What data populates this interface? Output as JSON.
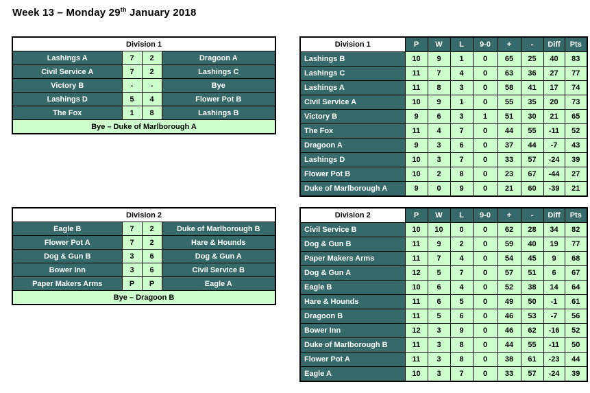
{
  "title": {
    "main": "Week 13 – Monday 29",
    "ordinal": "th",
    "rest": " January 2018"
  },
  "colors": {
    "teal": "#35696A",
    "light-green": "#CCFFCC",
    "header-bg": "#FFFFFF",
    "text-on-teal": "#FFFFFF",
    "text-dark": "#000000",
    "grid-border": "#000000"
  },
  "results": [
    {
      "name": "Division 1",
      "matches": [
        {
          "home": "Lashings A",
          "home_score": "7",
          "away_score": "2",
          "away": "Dragoon A"
        },
        {
          "home": "Civil Service A",
          "home_score": "7",
          "away_score": "2",
          "away": "Lashings C"
        },
        {
          "home": "Victory B",
          "home_score": "-",
          "away_score": "-",
          "away": "Bye"
        },
        {
          "home": "Lashings D",
          "home_score": "5",
          "away_score": "4",
          "away": "Flower Pot B"
        },
        {
          "home": "The Fox",
          "home_score": "1",
          "away_score": "8",
          "away": "Lashings B"
        }
      ],
      "bye": "Bye – Duke of Marlborough A"
    },
    {
      "name": "Division 2",
      "matches": [
        {
          "home": "Eagle B",
          "home_score": "7",
          "away_score": "2",
          "away": "Duke of Marlborough B"
        },
        {
          "home": "Flower Pot A",
          "home_score": "7",
          "away_score": "2",
          "away": "Hare & Hounds"
        },
        {
          "home": "Dog & Gun B",
          "home_score": "3",
          "away_score": "6",
          "away": "Dog & Gun A"
        },
        {
          "home": "Bower Inn",
          "home_score": "3",
          "away_score": "6",
          "away": "Civil Service B"
        },
        {
          "home": "Paper Makers Arms",
          "home_score": "P",
          "away_score": "P",
          "away": "Eagle A"
        }
      ],
      "bye": "Bye – Dragoon B"
    }
  ],
  "standings": [
    {
      "name": "Division 1",
      "columns": [
        "P",
        "W",
        "L",
        "9-0",
        "+",
        "-",
        "Diff",
        "Pts"
      ],
      "rows": [
        {
          "team": "Lashings B",
          "values": [
            10,
            9,
            1,
            0,
            65,
            25,
            40,
            83
          ]
        },
        {
          "team": "Lashings C",
          "values": [
            11,
            7,
            4,
            0,
            63,
            36,
            27,
            77
          ]
        },
        {
          "team": "Lashings A",
          "values": [
            11,
            8,
            3,
            0,
            58,
            41,
            17,
            74
          ]
        },
        {
          "team": "Civil Service A",
          "values": [
            10,
            9,
            1,
            0,
            55,
            35,
            20,
            73
          ]
        },
        {
          "team": "Victory B",
          "values": [
            9,
            6,
            3,
            1,
            51,
            30,
            21,
            65
          ]
        },
        {
          "team": "The Fox",
          "values": [
            11,
            4,
            7,
            0,
            44,
            55,
            -11,
            52
          ]
        },
        {
          "team": "Dragoon A",
          "values": [
            9,
            3,
            6,
            0,
            37,
            44,
            -7,
            43
          ]
        },
        {
          "team": "Lashings D",
          "values": [
            10,
            3,
            7,
            0,
            33,
            57,
            -24,
            39
          ]
        },
        {
          "team": "Flower Pot B",
          "values": [
            10,
            2,
            8,
            0,
            23,
            67,
            -44,
            27
          ]
        },
        {
          "team": "Duke of Marlborough A",
          "values": [
            9,
            0,
            9,
            0,
            21,
            60,
            -39,
            21
          ]
        }
      ]
    },
    {
      "name": "Division 2",
      "columns": [
        "P",
        "W",
        "L",
        "9-0",
        "+",
        "-",
        "Diff",
        "Pts"
      ],
      "rows": [
        {
          "team": "Civil Service B",
          "values": [
            10,
            10,
            0,
            0,
            62,
            28,
            34,
            82
          ]
        },
        {
          "team": "Dog & Gun B",
          "values": [
            11,
            9,
            2,
            0,
            59,
            40,
            19,
            77
          ]
        },
        {
          "team": "Paper Makers Arms",
          "values": [
            11,
            7,
            4,
            0,
            54,
            45,
            9,
            68
          ]
        },
        {
          "team": "Dog & Gun A",
          "values": [
            12,
            5,
            7,
            0,
            57,
            51,
            6,
            67
          ]
        },
        {
          "team": "Eagle B",
          "values": [
            10,
            6,
            4,
            0,
            52,
            38,
            14,
            64
          ]
        },
        {
          "team": "Hare & Hounds",
          "values": [
            11,
            6,
            5,
            0,
            49,
            50,
            -1,
            61
          ]
        },
        {
          "team": "Dragoon B",
          "values": [
            11,
            5,
            6,
            0,
            46,
            53,
            -7,
            56
          ]
        },
        {
          "team": "Bower Inn",
          "values": [
            12,
            3,
            9,
            0,
            46,
            62,
            -16,
            52
          ]
        },
        {
          "team": "Duke of Marlborough B",
          "values": [
            11,
            3,
            8,
            0,
            44,
            55,
            -11,
            50
          ]
        },
        {
          "team": "Flower Pot A",
          "values": [
            11,
            3,
            8,
            0,
            38,
            61,
            -23,
            44
          ]
        },
        {
          "team": "Eagle A",
          "values": [
            10,
            3,
            7,
            0,
            33,
            57,
            -24,
            39
          ]
        }
      ]
    }
  ]
}
